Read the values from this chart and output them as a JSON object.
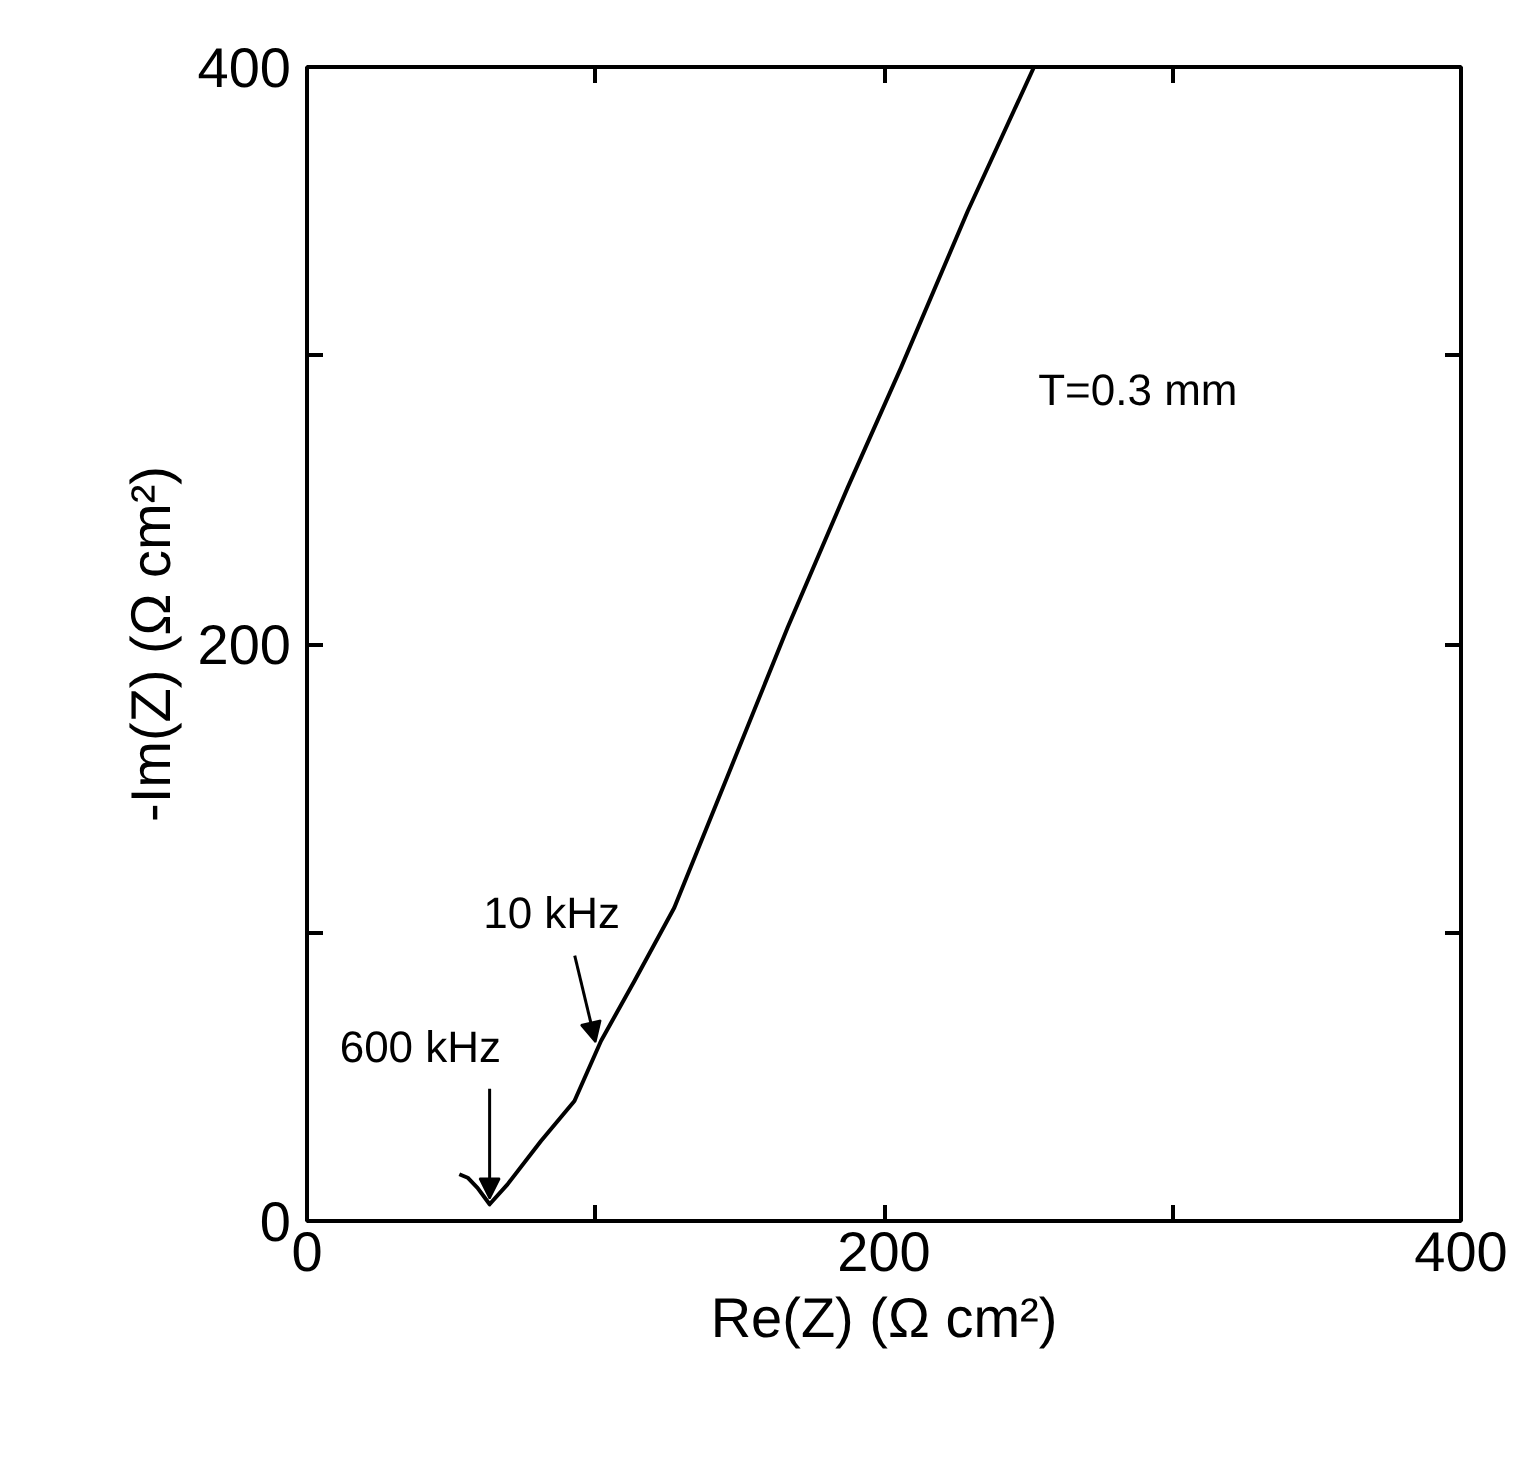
{
  "chart_data": {
    "type": "line",
    "xlabel": "Re(Z) (Ω cm²)",
    "ylabel": "-Im(Z) (Ω cm²)",
    "xlim": [
      0,
      400
    ],
    "ylim": [
      0,
      400
    ],
    "xticks": [
      0,
      {
        "value": 100,
        "label": null
      },
      200,
      {
        "value": 300,
        "label": null
      },
      400
    ],
    "yticks": [
      0,
      {
        "value": 100,
        "label": null
      },
      200,
      {
        "value": 300,
        "label": null
      },
      400
    ],
    "grid": false,
    "marker": "none",
    "line_style": "solid",
    "series": [
      {
        "color": "#000000",
        "x": [
          52.8,
          55.7,
          59.1,
          63.3,
          69.5,
          81.1,
          92.7,
          101.9,
          113.5,
          127.3,
          146.5,
          166.6,
          187.4,
          205.9,
          229,
          252
        ],
        "values": [
          16.2,
          15,
          11.5,
          5.8,
          12.7,
          27.7,
          41.6,
          62.4,
          83.2,
          108.6,
          156,
          205.7,
          254.2,
          295.8,
          350,
          400
        ]
      }
    ],
    "annotations": [
      {
        "text": "600 kHz",
        "x": 63.3,
        "y": 5.8
      },
      {
        "text": "10 kHz",
        "x": 100,
        "y": 60
      },
      "T=0.3 mm"
    ]
  }
}
